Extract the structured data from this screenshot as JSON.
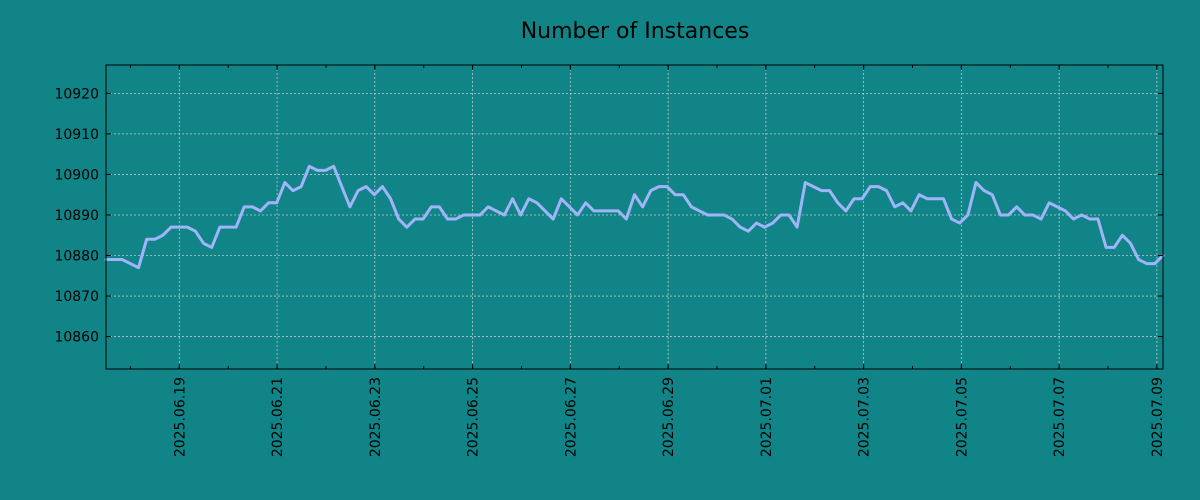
{
  "chart_data": {
    "type": "line",
    "title": "Number of Instances",
    "xlabel": "",
    "ylabel": "",
    "x_start": "2025.06.17 12:00",
    "x_end": "2025.07.09 03:00",
    "x_tick_labels": [
      "2025.06.19",
      "2025.06.21",
      "2025.06.23",
      "2025.06.25",
      "2025.06.27",
      "2025.06.29",
      "2025.07.01",
      "2025.07.03",
      "2025.07.05",
      "2025.07.07",
      "2025.07.09"
    ],
    "y_tick_labels": [
      "10860",
      "10870",
      "10880",
      "10890",
      "10900",
      "10910",
      "10920"
    ],
    "y_ticks": [
      10860,
      10870,
      10880,
      10890,
      10900,
      10910,
      10920
    ],
    "ylim": [
      10852,
      10927
    ],
    "grid": true,
    "legend": "none",
    "series": [
      {
        "color": "#a0b4fa",
        "values": [
          10879,
          10879,
          10879,
          10878,
          10877,
          10884,
          10884,
          10885,
          10887,
          10887,
          10887,
          10886,
          10883,
          10882,
          10887,
          10887,
          10887,
          10892,
          10892,
          10891,
          10893,
          10893,
          10898,
          10896,
          10897,
          10902,
          10901,
          10901,
          10902,
          10897,
          10892,
          10896,
          10897,
          10895,
          10897,
          10894,
          10889,
          10887,
          10889,
          10889,
          10892,
          10892,
          10889,
          10889,
          10890,
          10890,
          10890,
          10892,
          10891,
          10890,
          10894,
          10890,
          10894,
          10893,
          10891,
          10889,
          10894,
          10892,
          10890,
          10893,
          10891,
          10891,
          10891,
          10891,
          10889,
          10895,
          10892,
          10896,
          10897,
          10897,
          10895,
          10895,
          10892,
          10891,
          10890,
          10890,
          10890,
          10889,
          10887,
          10886,
          10888,
          10887,
          10888,
          10890,
          10890,
          10887,
          10898,
          10897,
          10896,
          10896,
          10893,
          10891,
          10894,
          10894,
          10897,
          10897,
          10896,
          10892,
          10893,
          10891,
          10895,
          10894,
          10894,
          10894,
          10889,
          10888,
          10890,
          10898,
          10896,
          10895,
          10890,
          10890,
          10892,
          10890,
          10890,
          10889,
          10893,
          10892,
          10891,
          10889,
          10890,
          10889,
          10889,
          10882,
          10882,
          10885,
          10883,
          10879,
          10878,
          10878,
          10880
        ]
      }
    ]
  }
}
